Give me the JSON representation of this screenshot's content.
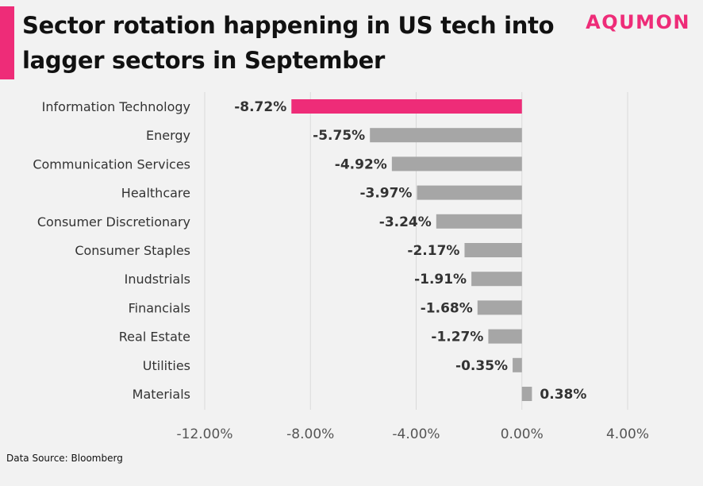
{
  "header": {
    "title": "Sector rotation happening in US tech into lagger sectors in September",
    "logo": "AQUMON"
  },
  "footer": {
    "source": "Data Source: Bloomberg"
  },
  "colors": {
    "accent": "#ee2c78",
    "bar": "#a6a6a6",
    "grid": "#d9d9d9",
    "background": "#f2f2f2"
  },
  "chart_data": {
    "type": "bar",
    "orientation": "horizontal",
    "categories": [
      "Information Technology",
      "Energy",
      "Communication Services",
      "Healthcare",
      "Consumer Discretionary",
      "Consumer Staples",
      "Inudstrials",
      "Financials",
      "Real Estate",
      "Utilities",
      "Materials"
    ],
    "values": [
      -8.72,
      -5.75,
      -4.92,
      -3.97,
      -3.24,
      -2.17,
      -1.91,
      -1.68,
      -1.27,
      -0.35,
      0.38
    ],
    "value_labels": [
      "-8.72%",
      "-5.75%",
      "-4.92%",
      "-3.97%",
      "-3.24%",
      "-2.17%",
      "-1.91%",
      "-1.68%",
      "-1.27%",
      "-0.35%",
      "0.38%"
    ],
    "highlight_index": 0,
    "xlim": [
      -12,
      4
    ],
    "xticks": [
      -12,
      -8,
      -4,
      0,
      4
    ],
    "xtick_labels": [
      "-12.00%",
      "-8.00%",
      "-4.00%",
      "0.00%",
      "4.00%"
    ],
    "grid": "vertical",
    "legend": "none"
  }
}
